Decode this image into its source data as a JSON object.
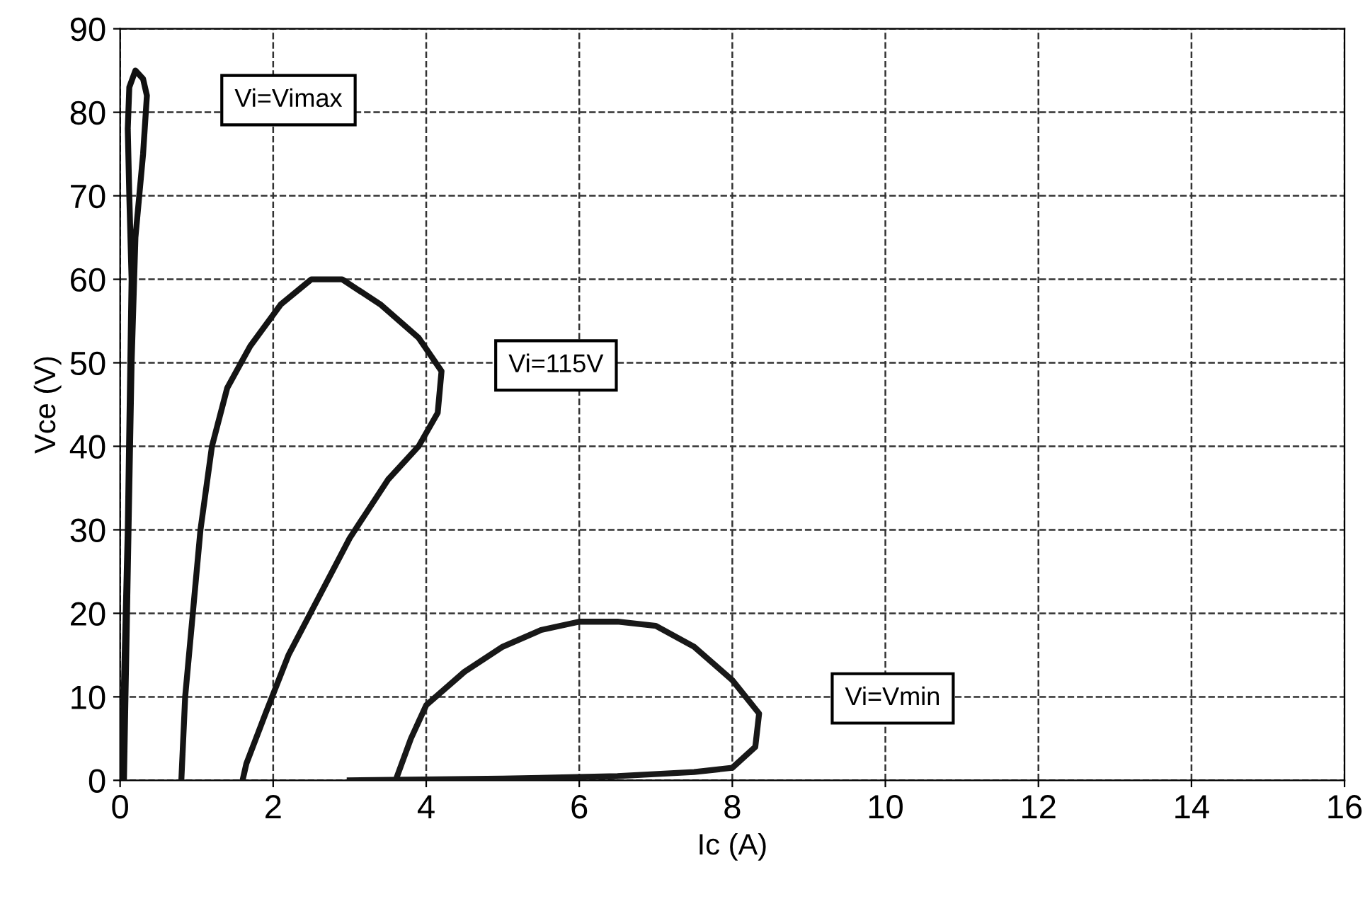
{
  "chart_data": {
    "type": "line",
    "xlabel": "Ic (A)",
    "ylabel": "Vce (V)",
    "xlim": [
      0,
      16
    ],
    "xticks": [
      0,
      2,
      4,
      6,
      8,
      10,
      12,
      14,
      16
    ],
    "ylim": [
      0,
      90
    ],
    "yticks": [
      0,
      10,
      20,
      30,
      40,
      50,
      60,
      70,
      80,
      90
    ],
    "grid": true,
    "line_style": "solid",
    "marker": "none",
    "series": [
      {
        "color": "#111111",
        "x": [
          0.02,
          0.06,
          0.1,
          0.15,
          0.12,
          0.1,
          0.12,
          0.2,
          0.3,
          0.35,
          0.3,
          0.25,
          0.2,
          0.15,
          0.12,
          0.08,
          0.05
        ],
        "values": [
          0,
          15,
          30,
          60,
          70,
          78,
          83,
          85,
          84,
          82,
          75,
          70,
          65,
          50,
          35,
          15,
          0
        ]
      },
      {
        "color": "#141414",
        "x": [
          0.8,
          0.85,
          0.95,
          1.05,
          1.2,
          1.4,
          1.7,
          2.1,
          2.5,
          2.9,
          3.4,
          3.9,
          4.2,
          4.15,
          3.9,
          3.5,
          3.0,
          2.6,
          2.2,
          1.9,
          1.65,
          1.6
        ],
        "values": [
          0,
          10,
          20,
          30,
          40,
          47,
          52,
          57,
          60,
          60,
          57,
          53,
          49,
          44,
          40,
          36,
          29,
          22,
          15,
          8,
          2,
          0
        ]
      },
      {
        "color": "#181818",
        "x": [
          3.6,
          3.8,
          4.0,
          4.5,
          5.0,
          5.5,
          6.0,
          6.5,
          7.0,
          7.5,
          8.0,
          8.35,
          8.3,
          8.0,
          7.5,
          6.5,
          5.0,
          3.0
        ],
        "values": [
          0,
          5,
          9,
          13,
          16,
          18,
          19,
          19,
          18.5,
          16,
          12,
          8,
          4,
          1.5,
          1,
          0.5,
          0.2,
          0
        ]
      }
    ],
    "annotations": [
      "Vi=Vimax",
      "Vi=115V",
      "Vi=Vmin"
    ]
  }
}
